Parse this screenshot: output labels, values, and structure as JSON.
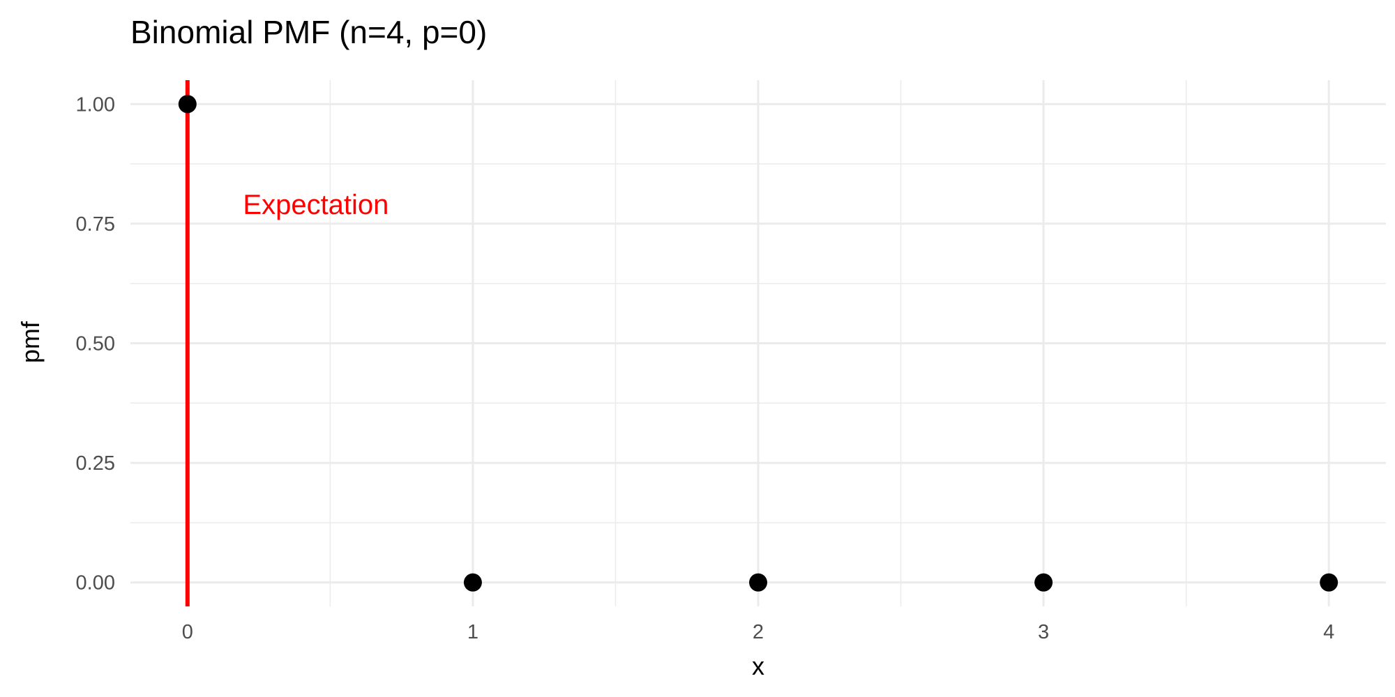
{
  "chart_data": {
    "type": "scatter",
    "title": "Binomial PMF (n=4, p=0)",
    "xlabel": "x",
    "ylabel": "pmf",
    "x": [
      0,
      1,
      2,
      3,
      4
    ],
    "y": [
      1.0,
      0.0,
      0.0,
      0.0,
      0.0
    ],
    "xlim": [
      -0.2,
      4.2
    ],
    "ylim": [
      -0.05,
      1.05
    ],
    "x_ticks": [
      0,
      1,
      2,
      3,
      4
    ],
    "x_tick_labels": [
      "0",
      "1",
      "2",
      "3",
      "4"
    ],
    "y_ticks": [
      0,
      0.25,
      0.5,
      0.75,
      1.0
    ],
    "y_tick_labels": [
      "0.00",
      "0.25",
      "0.50",
      "0.75",
      "1.00"
    ],
    "grid": true,
    "point_color": "#000000",
    "expectation": {
      "x": 0,
      "label": "Expectation",
      "label_x": 0.45,
      "label_y": 0.77,
      "color": "#ff0000"
    }
  }
}
